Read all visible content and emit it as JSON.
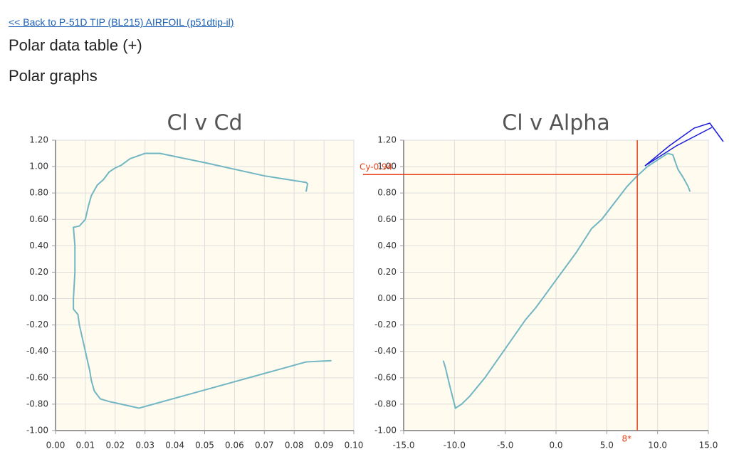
{
  "link": "<< Back to P-51D TIP (BL215) AIRFOIL (p51dtip-il)",
  "headings": [
    "Polar data table (+)",
    "Polar graphs"
  ],
  "chart_data": [
    {
      "type": "line",
      "title": "Cl v Cd",
      "color": "#72b6c3",
      "grid": true,
      "x": [
        0.0925,
        0.084,
        0.028,
        0.022,
        0.018,
        0.015,
        0.013,
        0.012,
        0.0115,
        0.011,
        0.01,
        0.009,
        0.008,
        0.0075,
        0.006,
        0.006,
        0.0065,
        0.0065,
        0.006,
        0.008,
        0.01,
        0.011,
        0.012,
        0.014,
        0.016,
        0.018,
        0.02,
        0.022,
        0.025,
        0.03,
        0.035,
        0.05,
        0.07,
        0.084,
        0.0845,
        0.084
      ],
      "values": [
        -0.47,
        -0.48,
        -0.83,
        -0.8,
        -0.78,
        -0.76,
        -0.7,
        -0.62,
        -0.55,
        -0.5,
        -0.4,
        -0.3,
        -0.2,
        -0.12,
        -0.08,
        0.0,
        0.2,
        0.4,
        0.54,
        0.55,
        0.6,
        0.7,
        0.78,
        0.86,
        0.9,
        0.96,
        0.99,
        1.01,
        1.06,
        1.1,
        1.1,
        1.03,
        0.93,
        0.88,
        0.87,
        0.81
      ],
      "xlim": [
        0,
        0.1
      ],
      "ylim": [
        -1,
        1.2
      ],
      "xticks": [
        {
          "value": 0,
          "label": "0.00"
        },
        {
          "value": 0.01,
          "label": "0.01"
        },
        {
          "value": 0.02,
          "label": "0.02"
        },
        {
          "value": 0.03,
          "label": "0.03"
        },
        {
          "value": 0.04,
          "label": "0.04"
        },
        {
          "value": 0.05,
          "label": "0.05"
        },
        {
          "value": 0.06,
          "label": "0.06"
        },
        {
          "value": 0.07,
          "label": "0.07"
        },
        {
          "value": 0.08,
          "label": "0.08"
        },
        {
          "value": 0.09,
          "label": "0.09"
        },
        {
          "value": 0.1,
          "label": "0.10"
        }
      ],
      "yticks": [
        {
          "value": -1,
          "label": "-1.00"
        },
        {
          "value": -0.8,
          "label": "-0.80"
        },
        {
          "value": -0.6,
          "label": "-0.60"
        },
        {
          "value": -0.4,
          "label": "-0.40"
        },
        {
          "value": -0.2,
          "label": "-0.20"
        },
        {
          "value": 0,
          "label": "0.00"
        },
        {
          "value": 0.2,
          "label": "0.20"
        },
        {
          "value": 0.4,
          "label": "0.40"
        },
        {
          "value": 0.6,
          "label": "0.60"
        },
        {
          "value": 0.8,
          "label": "0.80"
        },
        {
          "value": 1,
          "label": "1.00"
        },
        {
          "value": 1.2,
          "label": "1.20"
        }
      ]
    },
    {
      "type": "line",
      "title": "Cl v Alpha",
      "color": "#72b6c3",
      "grid": true,
      "x": [
        -11.1,
        -10.9,
        -10.4,
        -9.9,
        -9.3,
        -8.5,
        -7.0,
        -5.0,
        -3.0,
        -2.0,
        0.0,
        2.0,
        3.5,
        4.5,
        6.0,
        7.0,
        8.0,
        9.0,
        10.0,
        11.0,
        11.5,
        12.0,
        12.5,
        13.0,
        13.2
      ],
      "values": [
        -0.47,
        -0.52,
        -0.68,
        -0.83,
        -0.8,
        -0.74,
        -0.6,
        -0.38,
        -0.16,
        -0.07,
        0.14,
        0.35,
        0.53,
        0.6,
        0.75,
        0.85,
        0.93,
        1.0,
        1.05,
        1.1,
        1.09,
        0.98,
        0.92,
        0.85,
        0.81
      ],
      "xlim": [
        -15,
        15
      ],
      "ylim": [
        -1,
        1.2
      ],
      "xticks": [
        {
          "value": -15,
          "label": "-15.0"
        },
        {
          "value": -10,
          "label": "-10.0"
        },
        {
          "value": -5,
          "label": "-5.0"
        },
        {
          "value": 0,
          "label": "0.0"
        },
        {
          "value": 5,
          "label": "5.0"
        },
        {
          "value": 10,
          "label": "10.0"
        },
        {
          "value": 15,
          "label": "15.0"
        }
      ],
      "yticks": [
        {
          "value": -1,
          "label": "-1.00"
        },
        {
          "value": -0.8,
          "label": "-0.80"
        },
        {
          "value": -0.6,
          "label": "-0.60"
        },
        {
          "value": -0.4,
          "label": "-0.40"
        },
        {
          "value": -0.2,
          "label": "-0.20"
        },
        {
          "value": 0,
          "label": "0.00"
        },
        {
          "value": 0.2,
          "label": "0.20"
        },
        {
          "value": 0.4,
          "label": "0.40"
        },
        {
          "value": 0.6,
          "label": "0.60"
        },
        {
          "value": 0.8,
          "label": "0.80"
        },
        {
          "value": 1,
          "label": "1.00"
        },
        {
          "value": 1.2,
          "label": "1.20"
        }
      ],
      "annotations": [
        {
          "label": "Cy-0.94",
          "y": 0.94,
          "color": "#e8431c"
        },
        {
          "label": "8*",
          "x": 8,
          "color": "#e8431c"
        }
      ]
    }
  ]
}
